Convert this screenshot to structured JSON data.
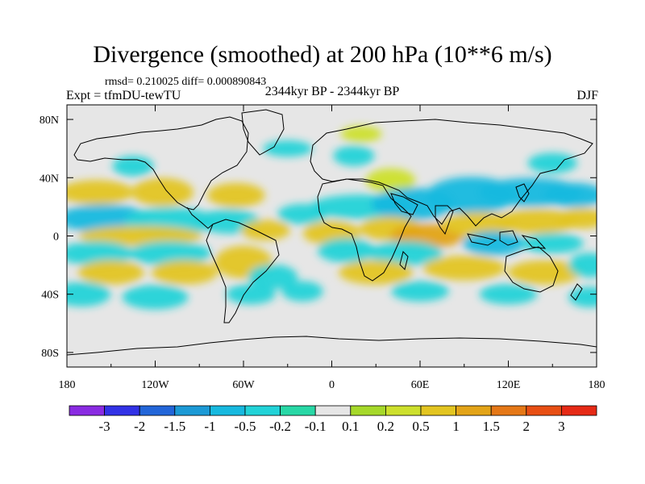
{
  "header": {
    "title": "Divergence (smoothed) at 200 hPa (10**6 m/s)",
    "stats": "rmsd= 0.210025 diff= 0.000890843",
    "experiment": "Expt = tfmDU-tewTU",
    "period": "2344kyr BP - 2344kyr BP",
    "season": "DJF"
  },
  "chart_data": {
    "type": "heatmap",
    "title": "Divergence (smoothed) at 200 hPa (10**6 m/s)",
    "x_ticks": [
      {
        "value": -180,
        "label": "180"
      },
      {
        "value": -120,
        "label": "120W"
      },
      {
        "value": -60,
        "label": "60W"
      },
      {
        "value": 0,
        "label": "0"
      },
      {
        "value": 60,
        "label": "60E"
      },
      {
        "value": 120,
        "label": "120E"
      },
      {
        "value": 180,
        "label": "180"
      }
    ],
    "y_ticks": [
      {
        "value": 80,
        "label": "80N"
      },
      {
        "value": 40,
        "label": "40N"
      },
      {
        "value": 0,
        "label": "0"
      },
      {
        "value": -40,
        "label": "40S"
      },
      {
        "value": -80,
        "label": "80S"
      }
    ],
    "xlim": [
      -180,
      180
    ],
    "ylim": [
      -90,
      90
    ],
    "colorbar": {
      "colors": [
        "#8a2be2",
        "#3232e6",
        "#2366d9",
        "#1c9ad6",
        "#17b9df",
        "#22d3d8",
        "#28d8a6",
        "#e6e6e6",
        "#a6d92a",
        "#cde02d",
        "#e3c521",
        "#e3a418",
        "#e57817",
        "#e84f14",
        "#e62a16"
      ],
      "labels": [
        "-3",
        "-2",
        "-1.5",
        "-1",
        "-0.5",
        "-0.2",
        "-0.1",
        "0.1",
        "0.2",
        "0.5",
        "1",
        "1.5",
        "2",
        "3"
      ]
    },
    "blobs": [
      {
        "lon": -160,
        "lat": 30,
        "rx": 18,
        "ry": 6,
        "value": 0.7
      },
      {
        "lon": -115,
        "lat": 30,
        "rx": 15,
        "ry": 7,
        "value": 0.7
      },
      {
        "lon": -65,
        "lat": 28,
        "rx": 14,
        "ry": 6,
        "value": 0.6
      },
      {
        "lon": -155,
        "lat": 12,
        "rx": 22,
        "ry": 7,
        "value": -0.6
      },
      {
        "lon": -110,
        "lat": 10,
        "rx": 22,
        "ry": 7,
        "value": -0.5
      },
      {
        "lon": -70,
        "lat": 10,
        "rx": 15,
        "ry": 6,
        "value": -0.4
      },
      {
        "lon": -45,
        "lat": 4,
        "rx": 12,
        "ry": 5,
        "value": 0.5
      },
      {
        "lon": -130,
        "lat": 0,
        "rx": 30,
        "ry": 5,
        "value": 0.6
      },
      {
        "lon": -160,
        "lat": -12,
        "rx": 18,
        "ry": 6,
        "value": -0.4
      },
      {
        "lon": -110,
        "lat": -12,
        "rx": 20,
        "ry": 6,
        "value": -0.5
      },
      {
        "lon": -60,
        "lat": -18,
        "rx": 14,
        "ry": 8,
        "value": 0.5
      },
      {
        "lon": -150,
        "lat": -25,
        "rx": 16,
        "ry": 6,
        "value": 0.6
      },
      {
        "lon": -100,
        "lat": -25,
        "rx": 16,
        "ry": 6,
        "value": 0.6
      },
      {
        "lon": -40,
        "lat": -28,
        "rx": 12,
        "ry": 6,
        "value": -0.4
      },
      {
        "lon": -170,
        "lat": -40,
        "rx": 14,
        "ry": 6,
        "value": -0.3
      },
      {
        "lon": -120,
        "lat": -42,
        "rx": 16,
        "ry": 6,
        "value": -0.3
      },
      {
        "lon": -55,
        "lat": -40,
        "rx": 12,
        "ry": 5,
        "value": -0.3
      },
      {
        "lon": -20,
        "lat": -38,
        "rx": 10,
        "ry": 5,
        "value": -0.3
      },
      {
        "lon": -30,
        "lat": 60,
        "rx": 12,
        "ry": 4,
        "value": -0.3
      },
      {
        "lon": 15,
        "lat": 55,
        "rx": 10,
        "ry": 5,
        "value": -0.3
      },
      {
        "lon": -20,
        "lat": 15,
        "rx": 12,
        "ry": 5,
        "value": -0.4
      },
      {
        "lon": 0,
        "lat": 2,
        "rx": 14,
        "ry": 6,
        "value": 0.8
      },
      {
        "lon": 40,
        "lat": 38,
        "rx": 12,
        "ry": 6,
        "value": 0.4
      },
      {
        "lon": 20,
        "lat": 20,
        "rx": 25,
        "ry": 6,
        "value": -0.3
      },
      {
        "lon": 55,
        "lat": 22,
        "rx": 20,
        "ry": 8,
        "value": -0.8
      },
      {
        "lon": 95,
        "lat": 28,
        "rx": 22,
        "ry": 9,
        "value": -1.0
      },
      {
        "lon": 135,
        "lat": 30,
        "rx": 25,
        "ry": 7,
        "value": -0.9
      },
      {
        "lon": 165,
        "lat": 28,
        "rx": 15,
        "ry": 6,
        "value": -0.6
      },
      {
        "lon": 40,
        "lat": 5,
        "rx": 15,
        "ry": 6,
        "value": 0.8
      },
      {
        "lon": 65,
        "lat": 0,
        "rx": 18,
        "ry": 6,
        "value": 1.4
      },
      {
        "lon": 100,
        "lat": 8,
        "rx": 18,
        "ry": 6,
        "value": 0.9
      },
      {
        "lon": 140,
        "lat": 10,
        "rx": 20,
        "ry": 6,
        "value": 0.6
      },
      {
        "lon": 170,
        "lat": 12,
        "rx": 12,
        "ry": 5,
        "value": 0.5
      },
      {
        "lon": 110,
        "lat": -5,
        "rx": 15,
        "ry": 6,
        "value": -0.6
      },
      {
        "lon": 150,
        "lat": -5,
        "rx": 15,
        "ry": 5,
        "value": -0.5
      },
      {
        "lon": 10,
        "lat": -10,
        "rx": 14,
        "ry": 6,
        "value": -0.4
      },
      {
        "lon": 50,
        "lat": -12,
        "rx": 18,
        "ry": 6,
        "value": -0.4
      },
      {
        "lon": 30,
        "lat": -25,
        "rx": 18,
        "ry": 6,
        "value": 0.6
      },
      {
        "lon": 90,
        "lat": -22,
        "rx": 20,
        "ry": 6,
        "value": 0.5
      },
      {
        "lon": 145,
        "lat": -25,
        "rx": 18,
        "ry": 6,
        "value": 0.7
      },
      {
        "lon": 175,
        "lat": -20,
        "rx": 10,
        "ry": 6,
        "value": -0.4
      },
      {
        "lon": 60,
        "lat": -38,
        "rx": 14,
        "ry": 5,
        "value": -0.3
      },
      {
        "lon": 120,
        "lat": -40,
        "rx": 14,
        "ry": 5,
        "value": -0.3
      },
      {
        "lon": 175,
        "lat": -42,
        "rx": 10,
        "ry": 5,
        "value": -0.3
      },
      {
        "lon": -135,
        "lat": 48,
        "rx": 10,
        "ry": 5,
        "value": -0.3
      },
      {
        "lon": 150,
        "lat": 50,
        "rx": 12,
        "ry": 5,
        "value": -0.3
      },
      {
        "lon": 20,
        "lat": 70,
        "rx": 10,
        "ry": 4,
        "value": 0.3
      }
    ]
  }
}
